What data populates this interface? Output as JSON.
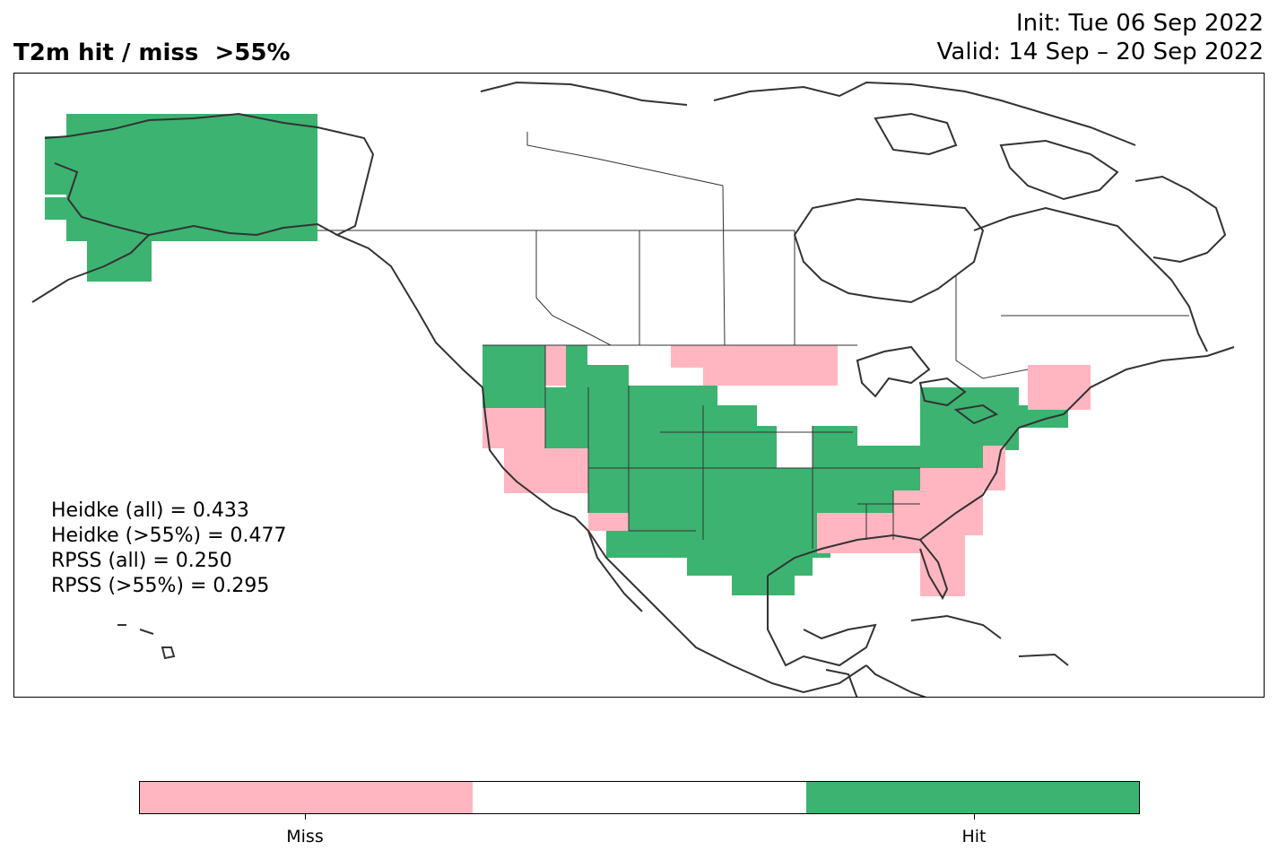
{
  "title": "T2m hit / miss  >55%",
  "init_line": "Init: Tue 06 Sep 2022",
  "valid_line": "Valid: 14 Sep – 20 Sep 2022",
  "stats": [
    "Heidke (all) = 0.433",
    "Heidke (>55%) = 0.477",
    "RPSS (all) = 0.250",
    "RPSS (>55%) = 0.295"
  ],
  "colors": {
    "miss": "#ffb6c1",
    "neutral": "#ffffff",
    "hit": "#3cb371",
    "coast": "#333333"
  },
  "colorbar": {
    "labels": [
      "Miss",
      "Hit"
    ]
  },
  "map": {
    "region": "North America",
    "variable": "T2m",
    "threshold": ">55%"
  }
}
